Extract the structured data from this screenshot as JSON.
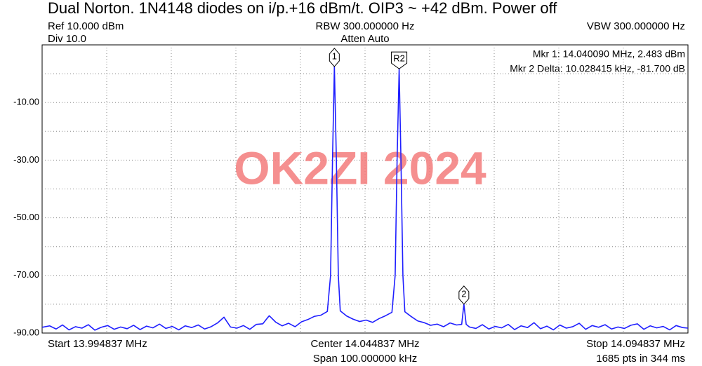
{
  "chart_data": {
    "type": "line",
    "title": "Dual Norton. 1N4148 diodes on i/p.+16 dBm/t. OIP3 ~ +42 dBm. Power off",
    "ref_level": "Ref 10.000 dBm",
    "div": "Div 10.0",
    "rbw": "RBW 300.000000 Hz",
    "atten": "Atten Auto",
    "vbw": "VBW 300.000000 Hz",
    "start": "Start 13.994837 MHz",
    "center": "Center 14.044837 MHz",
    "span": "Span 100.000000 kHz",
    "stop": "Stop 14.094837 MHz",
    "sweep": "1685 pts in 344 ms",
    "marker_readouts": [
      "Mkr 1: 14.040090 MHz, 2.483 dBm",
      "Mkr 2 Delta: 10.028415 kHz, -81.700 dB"
    ],
    "watermark": "OK2ZI 2024",
    "color": "#1f1fff",
    "xlim": [
      13.994837,
      14.094837
    ],
    "ylim": [
      -90,
      10
    ],
    "yticks": [
      {
        "value": -10,
        "label": "-10.00"
      },
      {
        "value": -30,
        "label": "-30.00"
      },
      {
        "value": -50,
        "label": "-50.00"
      },
      {
        "value": -70,
        "label": "-70.00"
      },
      {
        "value": -90,
        "label": "-90.00"
      }
    ],
    "ygrid": [
      0,
      -20,
      -40,
      -60,
      -80
    ],
    "xgrid": [
      14.004837,
      14.014837,
      14.024837,
      14.034837,
      14.044837,
      14.054837,
      14.064837,
      14.074837,
      14.084837
    ],
    "markers": [
      {
        "label": "1",
        "x": 14.04009,
        "y": 2.483
      },
      {
        "label": "R2",
        "x": 14.050118,
        "y": 1.7
      },
      {
        "label": "2",
        "x": 14.060146,
        "y": -80
      }
    ],
    "x": [
      13.994837,
      13.996,
      13.997,
      13.998,
      13.999,
      14.0,
      14.001,
      14.002,
      14.003,
      14.004,
      14.005,
      14.006,
      14.007,
      14.008,
      14.009,
      14.01,
      14.011,
      14.012,
      14.013,
      14.014,
      14.015,
      14.016,
      14.017,
      14.018,
      14.019,
      14.02,
      14.021,
      14.022,
      14.023,
      14.024,
      14.025,
      14.026,
      14.027,
      14.028,
      14.029,
      14.03,
      14.031,
      14.032,
      14.033,
      14.034,
      14.035,
      14.036,
      14.037,
      14.038,
      14.039,
      14.0395,
      14.0398,
      14.04009,
      14.0404,
      14.0407,
      14.041,
      14.042,
      14.043,
      14.044,
      14.045,
      14.046,
      14.047,
      14.048,
      14.049,
      14.0495,
      14.0498,
      14.050118,
      14.0504,
      14.0507,
      14.051,
      14.052,
      14.053,
      14.054,
      14.055,
      14.056,
      14.057,
      14.058,
      14.059,
      14.0598,
      14.060146,
      14.0605,
      14.061,
      14.062,
      14.063,
      14.064,
      14.065,
      14.066,
      14.067,
      14.068,
      14.069,
      14.07,
      14.071,
      14.072,
      14.073,
      14.074,
      14.075,
      14.076,
      14.077,
      14.078,
      14.079,
      14.08,
      14.081,
      14.082,
      14.083,
      14.084,
      14.085,
      14.086,
      14.087,
      14.088,
      14.089,
      14.09,
      14.091,
      14.092,
      14.093,
      14.094,
      14.094837
    ],
    "values": [
      -88,
      -87.5,
      -88.6,
      -87.2,
      -88.9,
      -87.8,
      -88.3,
      -87.1,
      -89.0,
      -88.0,
      -87.4,
      -88.7,
      -87.9,
      -88.5,
      -87.3,
      -88.8,
      -87.6,
      -88.2,
      -86.9,
      -88.4,
      -87.7,
      -88.9,
      -87.5,
      -88.1,
      -87.2,
      -88.6,
      -87.8,
      -86.5,
      -84.5,
      -87.9,
      -88.3,
      -87.4,
      -88.7,
      -87.0,
      -86.8,
      -84.0,
      -86.2,
      -87.5,
      -86.6,
      -87.8,
      -86.1,
      -85.3,
      -84.2,
      -83.8,
      -82.5,
      -70,
      -30,
      2.483,
      -30,
      -70,
      -82.3,
      -84.1,
      -85.2,
      -86.0,
      -85.5,
      -86.3,
      -85.0,
      -84.0,
      -82.8,
      -70,
      -30,
      1.7,
      -30,
      -70,
      -82.6,
      -84.3,
      -85.8,
      -86.4,
      -87.3,
      -86.9,
      -87.8,
      -86.5,
      -87.2,
      -87,
      -80,
      -87,
      -87.9,
      -88.4,
      -87.1,
      -88.6,
      -87.7,
      -88.2,
      -87.0,
      -88.8,
      -87.5,
      -88.1,
      -86.4,
      -88.5,
      -87.6,
      -88.9,
      -87.2,
      -88.3,
      -87.8,
      -86.6,
      -88.7,
      -87.4,
      -88.0,
      -87.1,
      -88.6,
      -87.9,
      -88.4,
      -87.3,
      -86.8,
      -88.7,
      -87.5,
      -88.2,
      -87.7,
      -88.9,
      -87.4,
      -88.1,
      -88.3
    ]
  }
}
